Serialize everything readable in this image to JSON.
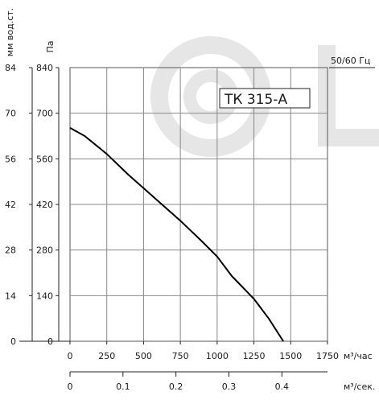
{
  "chart_data": {
    "type": "line",
    "title": "ТК 315-А",
    "frequency_label": "50/60 Гц",
    "y_left_unit": "мм вод.ст.",
    "y_right_unit": "Па",
    "x_unit_main": "м³/час",
    "x_unit_secondary": "м³/сек.",
    "y_mm_ticks": [
      "84",
      "70",
      "56",
      "42",
      "28",
      "14",
      "0"
    ],
    "y_pa_ticks": [
      "840",
      "700",
      "560",
      "420",
      "280",
      "140",
      "0"
    ],
    "x_main_ticks": [
      "0",
      "250",
      "500",
      "750",
      "1000",
      "1250",
      "1500",
      "1750"
    ],
    "x_secondary_ticks": [
      "0",
      "0.1",
      "0.2",
      "0.3",
      "0.4"
    ],
    "xlim": [
      0,
      1750
    ],
    "ylim": [
      0,
      840
    ],
    "grid": true,
    "watermark_color": "#e6e6e6",
    "line_color": "#000000",
    "series": [
      {
        "x": [
          0,
          100,
          250,
          400,
          500,
          600,
          750,
          900,
          1000,
          1100,
          1250,
          1350,
          1450
        ],
        "y": [
          655,
          630,
          575,
          510,
          470,
          430,
          370,
          305,
          260,
          200,
          130,
          70,
          0
        ]
      }
    ]
  }
}
